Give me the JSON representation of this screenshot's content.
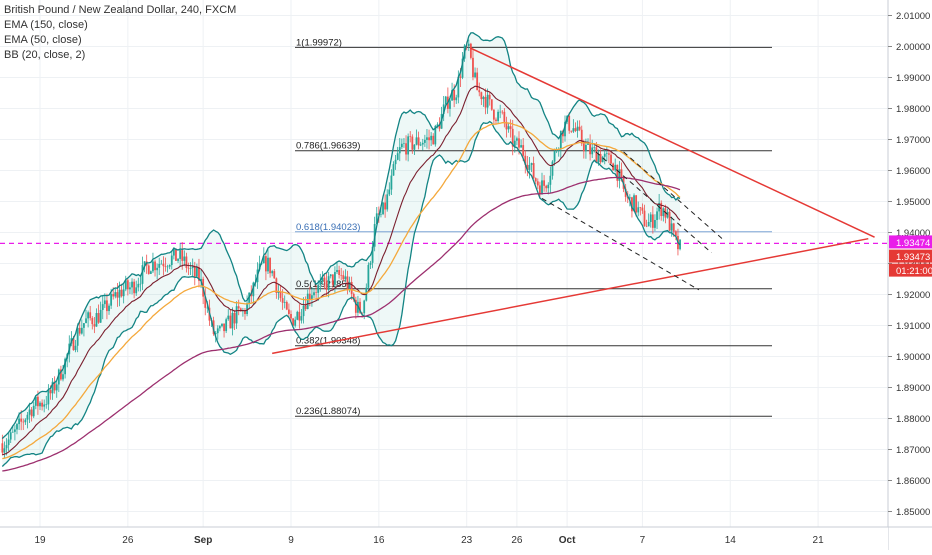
{
  "legend": {
    "title": "British Pound / New Zealand Dollar, 240, FXCM",
    "ind1": "EMA (150, close)",
    "ind2": "EMA (50, close)",
    "ind3": "BB (20, close, 2)"
  },
  "colors": {
    "up": "#26a69a",
    "down": "#ef5350",
    "bb": "#138484",
    "bbFill": "#26a69a",
    "ema150": "#9c2f6e",
    "ema50": "#f4a83b",
    "ema20": "#7a1f2e",
    "trend": "#e53935",
    "dashed": "#222222",
    "fib": "#333333",
    "fib618": "#7fa6d6",
    "hline": "#e91ee9",
    "priceTag": "#e53935"
  },
  "chart_data": {
    "type": "candlestick",
    "symbol": "British Pound / New Zealand Dollar",
    "interval": "240",
    "source": "FXCM",
    "indicators": [
      "EMA (150, close)",
      "EMA (50, close)",
      "BB (20, close, 2)"
    ],
    "ylim": [
      1.845,
      2.015
    ],
    "yticks": [
      "2.01000",
      "2.00000",
      "1.99000",
      "1.98000",
      "1.97000",
      "1.96000",
      "1.95000",
      "1.94000",
      "1.93000",
      "1.92000",
      "1.91000",
      "1.90000",
      "1.89000",
      "1.88000",
      "1.87000",
      "1.86000",
      "1.85000"
    ],
    "xticks": [
      {
        "label": "19",
        "d": 0
      },
      {
        "label": "26",
        "d": 7
      },
      {
        "label": "Sep",
        "d": 13
      },
      {
        "label": "9",
        "d": 20
      },
      {
        "label": "16",
        "d": 27
      },
      {
        "label": "23",
        "d": 34
      },
      {
        "label": "26",
        "d": 38
      },
      {
        "label": "Oct",
        "d": 42
      },
      {
        "label": "7",
        "d": 48
      },
      {
        "label": "14",
        "d": 55
      },
      {
        "label": "21",
        "d": 62
      }
    ],
    "fib_levels": [
      {
        "label": "1(1.99972)",
        "value": 1.99972
      },
      {
        "label": "0.786(1.96639)",
        "value": 1.96639
      },
      {
        "label": "0.618(1.94023)",
        "value": 1.94023
      },
      {
        "label": "0.5(1.92185)",
        "value": 1.92185
      },
      {
        "label": "0.382(1.90348)",
        "value": 1.90348
      },
      {
        "label": "0.236(1.88074)",
        "value": 1.88074
      }
    ],
    "horizontal_line": 1.9365,
    "price_tags": [
      "1.93474",
      "1.93473",
      "01:21:00"
    ],
    "trendlines": [
      {
        "kind": "resistance",
        "from": [
          34.3,
          1.9995
        ],
        "to": [
          66.5,
          1.9385
        ]
      },
      {
        "kind": "support",
        "from": [
          18.5,
          1.901
        ],
        "to": [
          66.0,
          1.938
        ]
      }
    ],
    "anchors": [
      {
        "d": -3,
        "close": 1.872
      },
      {
        "d": 0,
        "close": 1.885
      },
      {
        "d": 4,
        "close": 1.912
      },
      {
        "d": 7,
        "close": 1.922
      },
      {
        "d": 9,
        "close": 1.93
      },
      {
        "d": 11,
        "close": 1.932
      },
      {
        "d": 12.5,
        "close": 1.926
      },
      {
        "d": 14,
        "close": 1.907
      },
      {
        "d": 16,
        "close": 1.914
      },
      {
        "d": 18,
        "close": 1.93
      },
      {
        "d": 20,
        "close": 1.912
      },
      {
        "d": 22,
        "close": 1.922
      },
      {
        "d": 24,
        "close": 1.926
      },
      {
        "d": 25.5,
        "close": 1.915
      },
      {
        "d": 27,
        "close": 1.945
      },
      {
        "d": 29,
        "close": 1.968
      },
      {
        "d": 31,
        "close": 1.97
      },
      {
        "d": 33,
        "close": 1.985
      },
      {
        "d": 34,
        "close": 1.999
      },
      {
        "d": 35,
        "close": 1.985
      },
      {
        "d": 36.5,
        "close": 1.978
      },
      {
        "d": 38,
        "close": 1.968
      },
      {
        "d": 40,
        "close": 1.955
      },
      {
        "d": 42,
        "close": 1.975
      },
      {
        "d": 44,
        "close": 1.966
      },
      {
        "d": 45.5,
        "close": 1.963
      },
      {
        "d": 47,
        "close": 1.95
      },
      {
        "d": 48.5,
        "close": 1.943
      },
      {
        "d": 49.5,
        "close": 1.948
      },
      {
        "d": 51,
        "close": 1.935
      }
    ]
  }
}
